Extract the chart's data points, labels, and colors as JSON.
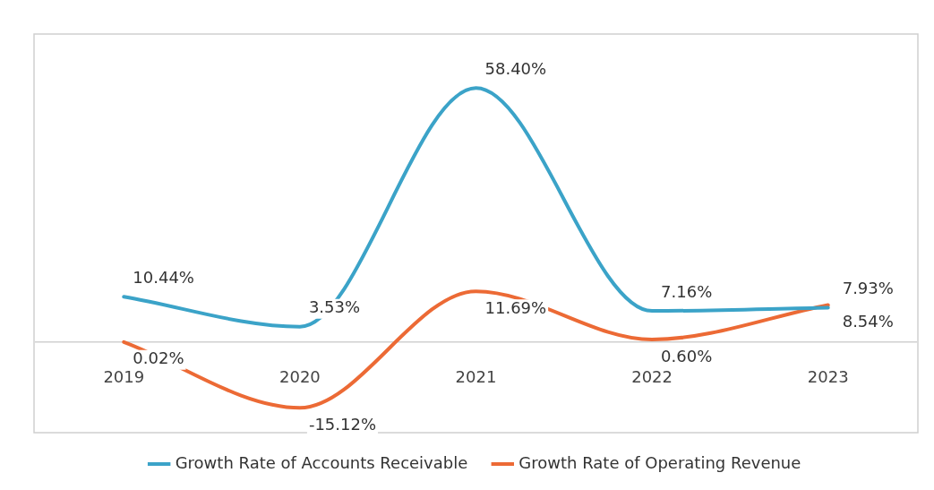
{
  "chart_data": {
    "type": "line",
    "categories": [
      "2019",
      "2020",
      "2021",
      "2022",
      "2023"
    ],
    "series": [
      {
        "name": "Growth Rate of Accounts Receivable",
        "color": "#3ba3c8",
        "values": [
          10.44,
          3.53,
          58.4,
          7.16,
          7.93
        ],
        "value_labels": [
          "10.44%",
          "3.53%",
          "58.40%",
          "7.16%",
          "7.93%"
        ]
      },
      {
        "name": "Growth Rate of Operating Revenue",
        "color": "#ec6a35",
        "values": [
          0.02,
          -15.12,
          11.69,
          0.6,
          8.54
        ],
        "value_labels": [
          "0.02%",
          "-15.12%",
          "11.69%",
          "0.60%",
          "8.54%"
        ]
      }
    ],
    "legend": "bottom",
    "grid": false,
    "marker": "none",
    "line_style": "solid",
    "tick_labels": "x"
  }
}
